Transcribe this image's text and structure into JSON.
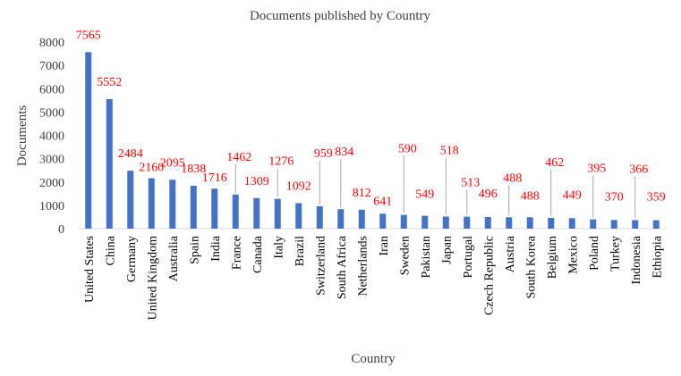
{
  "chart_data": {
    "type": "bar",
    "title": "Documents published by Country",
    "xlabel": "Country",
    "ylabel": "Documents",
    "ylim": [
      0,
      8000
    ],
    "yticks": [
      0,
      1000,
      2000,
      3000,
      4000,
      5000,
      6000,
      7000,
      8000
    ],
    "grid": false,
    "legend": "none",
    "categories": [
      "United States",
      "China",
      "Germany",
      "United Kingdom",
      "Australia",
      "Spain",
      "India",
      "France",
      "Canada",
      "Italy",
      "Brazil",
      "Switzerland",
      "South Africa",
      "Netherlands",
      "Iran",
      "Sweden",
      "Pakistan",
      "Japan",
      "Portugal",
      "Czech Republic",
      "Austria",
      "South Korea",
      "Belgium",
      "Mexico",
      "Poland",
      "Turkey",
      "Indonesia",
      "Ethiopia"
    ],
    "values": [
      7565,
      5552,
      2484,
      2160,
      2095,
      1838,
      1716,
      1462,
      1309,
      1276,
      1092,
      959,
      834,
      812,
      641,
      590,
      549,
      518,
      513,
      496,
      488,
      488,
      462,
      449,
      395,
      370,
      366,
      359
    ],
    "colors": {
      "bar": "#4472c4",
      "label": "#ff0000",
      "axis_text": "#404040"
    }
  }
}
